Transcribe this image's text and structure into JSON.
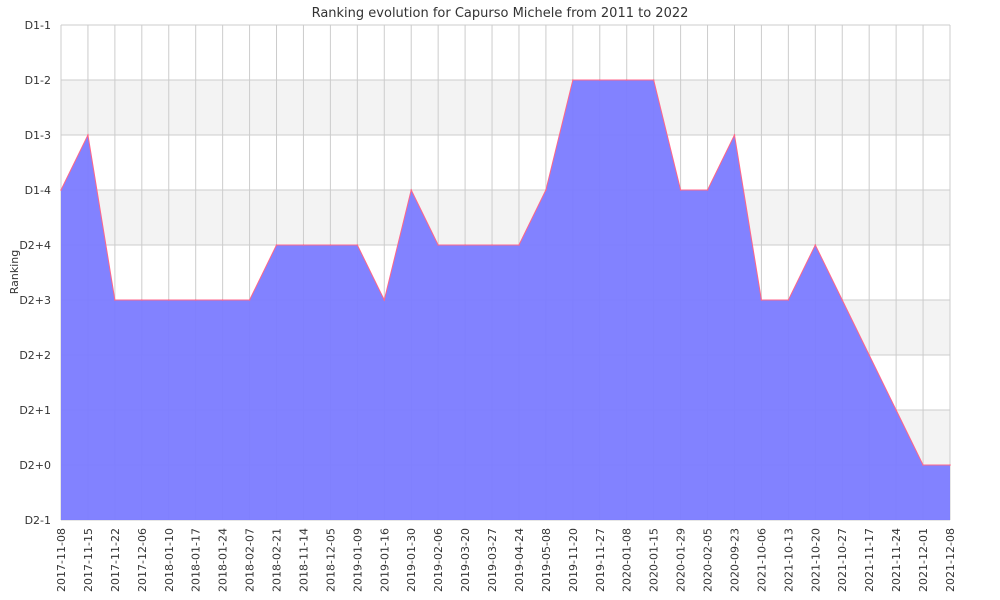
{
  "chart_data": {
    "type": "area",
    "title": "Ranking evolution for Capurso Michele from 2011 to 2022",
    "xlabel": "",
    "ylabel": "Ranking",
    "y_categories": [
      "D2-1",
      "D2+0",
      "D2+1",
      "D2+2",
      "D2+3",
      "D2+4",
      "D1-4",
      "D1-3",
      "D1-2",
      "D1-1"
    ],
    "x": [
      "2017-11-08",
      "2017-11-15",
      "2017-11-22",
      "2017-12-06",
      "2018-01-10",
      "2018-01-17",
      "2018-01-24",
      "2018-02-07",
      "2018-02-21",
      "2018-11-14",
      "2018-12-05",
      "2019-01-09",
      "2019-01-16",
      "2019-01-30",
      "2019-02-06",
      "2019-03-20",
      "2019-03-27",
      "2019-04-24",
      "2019-05-08",
      "2019-11-20",
      "2019-11-27",
      "2020-01-08",
      "2020-01-15",
      "2020-01-29",
      "2020-02-05",
      "2020-09-23",
      "2021-10-06",
      "2021-10-13",
      "2021-10-20",
      "2021-10-27",
      "2021-11-17",
      "2021-11-24",
      "2021-12-01",
      "2021-12-08"
    ],
    "values": [
      "D1-4",
      "D1-3",
      "D2+3",
      "D2+3",
      "D2+3",
      "D2+3",
      "D2+3",
      "D2+3",
      "D2+4",
      "D2+4",
      "D2+4",
      "D2+4",
      "D2+3",
      "D1-4",
      "D2+4",
      "D2+4",
      "D2+4",
      "D2+4",
      "D1-4",
      "D1-2",
      "D1-2",
      "D1-2",
      "D1-2",
      "D1-4",
      "D1-4",
      "D1-3",
      "D2+3",
      "D2+3",
      "D2+4",
      "D2+3",
      "D2+2",
      "D2+1",
      "D2+0",
      "D2+0"
    ],
    "grid": true,
    "colors": {
      "fill": "#7b7bff",
      "line": "#ff6688",
      "band": "#f3f3f3",
      "grid": "#cccccc",
      "text": "#333333"
    }
  }
}
